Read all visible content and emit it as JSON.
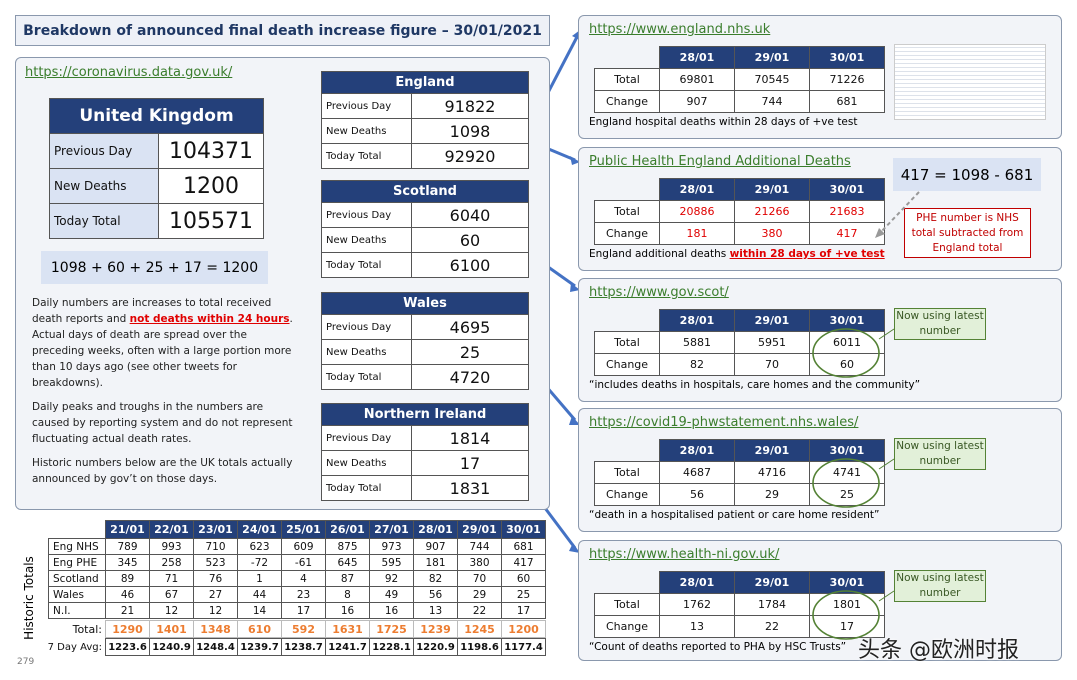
{
  "title": "Breakdown of announced final death increase figure – 30/01/2021",
  "uk": {
    "url": "https://coronavirus.data.gov.uk/",
    "name": "United Kingdom",
    "rows": [
      [
        "Previous Day",
        "104371"
      ],
      [
        "New Deaths",
        "1200"
      ],
      [
        "Today Total",
        "105571"
      ]
    ],
    "equation": "1098 + 60 + 25 + 17 = 1200"
  },
  "notes": [
    [
      "Daily numbers are increases to total received death reports and ",
      "not deaths within 24 hours",
      ". Actual days of death are spread over the preceding weeks, often with a large portion more than 10 days ago (see other tweets for breakdowns)."
    ],
    [
      "Daily peaks and troughs in the numbers are caused by reporting system and do not represent fluctuating actual death rates."
    ],
    [
      "Historic numbers below are the UK totals actually announced by gov’t on those days."
    ]
  ],
  "nations": [
    {
      "name": "England",
      "rows": [
        [
          "Previous Day",
          "91822"
        ],
        [
          "New Deaths",
          "1098"
        ],
        [
          "Today Total",
          "92920"
        ]
      ]
    },
    {
      "name": "Scotland",
      "rows": [
        [
          "Previous Day",
          "6040"
        ],
        [
          "New Deaths",
          "60"
        ],
        [
          "Today Total",
          "6100"
        ]
      ]
    },
    {
      "name": "Wales",
      "rows": [
        [
          "Previous Day",
          "4695"
        ],
        [
          "New Deaths",
          "25"
        ],
        [
          "Today Total",
          "4720"
        ]
      ]
    },
    {
      "name": "Northern Ireland",
      "rows": [
        [
          "Previous Day",
          "1814"
        ],
        [
          "New Deaths",
          "17"
        ],
        [
          "Today Total",
          "1831"
        ]
      ]
    }
  ],
  "sources": [
    {
      "url": "https://www.england.nhs.uk",
      "headers": [
        "28/01",
        "29/01",
        "30/01"
      ],
      "rows": [
        [
          "Total",
          "69801",
          "70545",
          "71226"
        ],
        [
          "Change",
          "907",
          "744",
          "681"
        ]
      ],
      "caption": [
        "England hospital deaths within 28 days of +ve test"
      ]
    },
    {
      "url": "Public Health England Additional Deaths",
      "headers": [
        "28/01",
        "29/01",
        "30/01"
      ],
      "rows": [
        [
          "Total",
          "20886",
          "21266",
          "21683"
        ],
        [
          "Change",
          "181",
          "380",
          "417"
        ]
      ],
      "caption": [
        "England additional deaths ",
        "within 28 days of +ve test"
      ],
      "equation": "417 = 1098 - 681",
      "note": "PHE number is NHS total subtracted from England total"
    },
    {
      "url": "https://www.gov.scot/",
      "headers": [
        "28/01",
        "29/01",
        "30/01"
      ],
      "rows": [
        [
          "Total",
          "5881",
          "5951",
          "6011"
        ],
        [
          "Change",
          "82",
          "70",
          "60"
        ]
      ],
      "caption": [
        "“includes deaths in hospitals, care homes and the community”"
      ],
      "note": "Now using latest number"
    },
    {
      "url": "https://covid19-phwstatement.nhs.wales/",
      "headers": [
        "28/01",
        "29/01",
        "30/01"
      ],
      "rows": [
        [
          "Total",
          "4687",
          "4716",
          "4741"
        ],
        [
          "Change",
          "56",
          "29",
          "25"
        ]
      ],
      "caption": [
        "“death in a hospitalised patient or care home resident”"
      ],
      "note": "Now using latest number"
    },
    {
      "url": "https://www.health-ni.gov.uk/",
      "headers": [
        "28/01",
        "29/01",
        "30/01"
      ],
      "rows": [
        [
          "Total",
          "1762",
          "1784",
          "1801"
        ],
        [
          "Change",
          "13",
          "22",
          "17"
        ]
      ],
      "caption": [
        "“Count of deaths reported to PHA by HSC Trusts”"
      ],
      "note": "Now using latest number"
    }
  ],
  "historic": {
    "label": "Historic Totals",
    "columns": [
      "21/01",
      "22/01",
      "23/01",
      "24/01",
      "25/01",
      "26/01",
      "27/01",
      "28/01",
      "29/01",
      "30/01"
    ],
    "rows": [
      [
        "Eng NHS",
        "789",
        "993",
        "710",
        "623",
        "609",
        "875",
        "973",
        "907",
        "744",
        "681"
      ],
      [
        "Eng PHE",
        "345",
        "258",
        "523",
        "-72",
        "-61",
        "645",
        "595",
        "181",
        "380",
        "417"
      ],
      [
        "Scotland",
        "89",
        "71",
        "76",
        "1",
        "4",
        "87",
        "92",
        "82",
        "70",
        "60"
      ],
      [
        "Wales",
        "46",
        "67",
        "27",
        "44",
        "23",
        "8",
        "49",
        "56",
        "29",
        "25"
      ],
      [
        "N.I.",
        "21",
        "12",
        "12",
        "14",
        "17",
        "16",
        "16",
        "13",
        "22",
        "17"
      ]
    ],
    "total": [
      "Total:",
      "1290",
      "1401",
      "1348",
      "610",
      "592",
      "1631",
      "1725",
      "1239",
      "1245",
      "1200"
    ],
    "average": [
      "7 Day Avg:",
      "1223.6",
      "1240.9",
      "1248.4",
      "1239.7",
      "1238.7",
      "1241.7",
      "1228.1",
      "1220.9",
      "1198.6",
      "1177.4"
    ]
  },
  "page_number": "279",
  "watermark": "头条 @欧洲时报"
}
